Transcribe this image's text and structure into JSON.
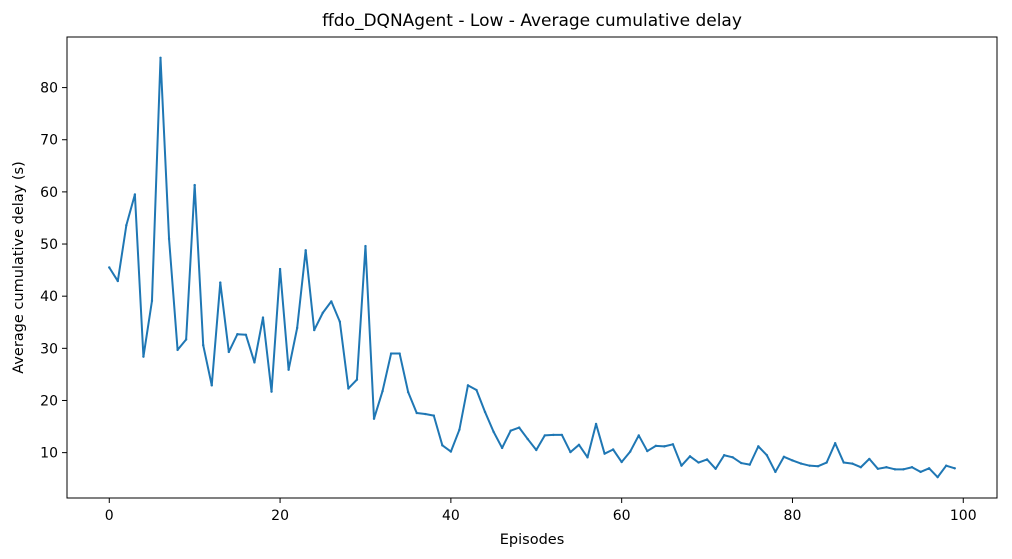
{
  "chart_data": {
    "type": "line",
    "title": "ffdo_DQNAgent - Low - Average cumulative delay",
    "xlabel": "Episodes",
    "ylabel": "Average cumulative delay (s)",
    "xlim": [
      -4.95,
      103.95
    ],
    "ylim": [
      1.3,
      89.7
    ],
    "xticks": [
      0,
      20,
      40,
      60,
      80,
      100
    ],
    "yticks": [
      10,
      20,
      30,
      40,
      50,
      60,
      70,
      80
    ],
    "grid": false,
    "series": [
      {
        "color": "#1f77b4",
        "x": [
          0,
          1,
          2,
          3,
          4,
          5,
          6,
          7,
          8,
          9,
          10,
          11,
          12,
          13,
          14,
          15,
          16,
          17,
          18,
          19,
          20,
          21,
          22,
          23,
          24,
          25,
          26,
          27,
          28,
          29,
          30,
          31,
          32,
          33,
          34,
          35,
          36,
          37,
          38,
          39,
          40,
          41,
          42,
          43,
          44,
          45,
          46,
          47,
          48,
          49,
          50,
          51,
          52,
          53,
          54,
          55,
          56,
          57,
          58,
          59,
          60,
          61,
          62,
          63,
          64,
          65,
          66,
          67,
          68,
          69,
          70,
          71,
          72,
          73,
          74,
          75,
          76,
          77,
          78,
          79,
          80,
          81,
          82,
          83,
          84,
          85,
          86,
          87,
          88,
          89,
          90,
          91,
          92,
          93,
          94,
          95,
          96,
          97,
          98,
          99
        ],
        "values": [
          45.5,
          42.9,
          53.6,
          59.5,
          28.4,
          39.1,
          85.7,
          51.0,
          29.7,
          31.7,
          61.3,
          30.6,
          22.9,
          42.6,
          29.3,
          32.7,
          32.6,
          27.3,
          35.9,
          21.7,
          45.2,
          25.9,
          33.9,
          48.8,
          33.5,
          36.8,
          39.0,
          35.1,
          22.3,
          24.0,
          49.6,
          16.5,
          21.8,
          29.0,
          29.0,
          21.6,
          17.6,
          17.4,
          17.1,
          11.4,
          10.2,
          14.4,
          22.9,
          22.0,
          17.8,
          14.0,
          10.9,
          14.2,
          14.8,
          12.6,
          10.5,
          13.3,
          13.4,
          13.4,
          10.1,
          11.5,
          9.1,
          15.5,
          9.8,
          10.6,
          8.2,
          10.2,
          13.3,
          10.3,
          11.3,
          11.2,
          11.6,
          7.5,
          9.3,
          8.1,
          8.7,
          6.9,
          9.5,
          9.1,
          8.0,
          7.7,
          11.2,
          9.5,
          6.3,
          9.2,
          8.5,
          7.9,
          7.5,
          7.4,
          8.1,
          11.8,
          8.1,
          7.9,
          7.2,
          8.8,
          6.9,
          7.2,
          6.8,
          6.8,
          7.2,
          6.3,
          7.0,
          5.3,
          7.5,
          7.0
        ]
      }
    ]
  }
}
